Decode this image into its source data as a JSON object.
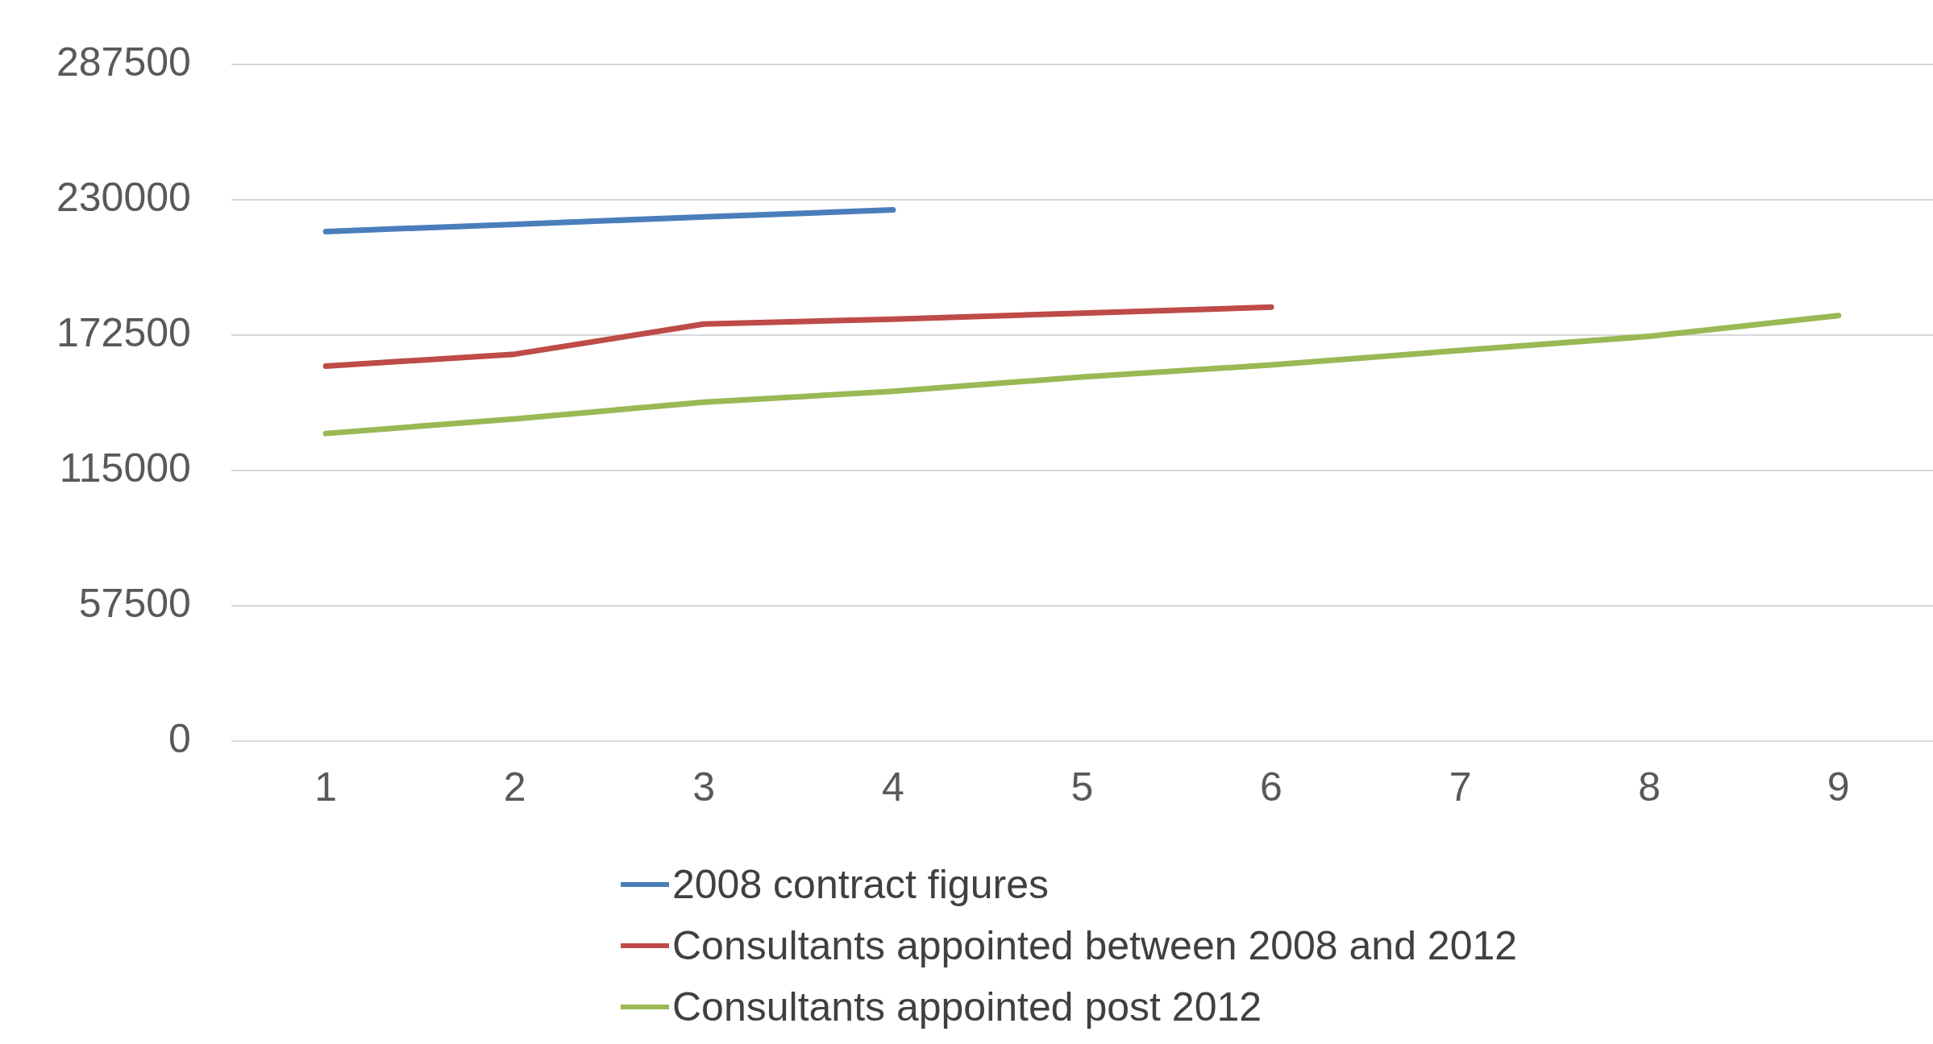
{
  "chart_data": {
    "type": "line",
    "categories": [
      "1",
      "2",
      "3",
      "4",
      "5",
      "6",
      "7",
      "8",
      "9"
    ],
    "series": [
      {
        "name": "2008 contract figures",
        "color": "#4a7ebb",
        "values": [
          216500,
          219600,
          222700,
          225700,
          null,
          null,
          null,
          null,
          null
        ]
      },
      {
        "name": "Consultants appointed between 2008 and 2012",
        "color": "#be4b48",
        "values": [
          159300,
          164400,
          177200,
          179300,
          181800,
          184400,
          null,
          null,
          null
        ]
      },
      {
        "name": "Consultants appointed post 2012",
        "color": "#98b954",
        "values": [
          130700,
          136900,
          144000,
          148600,
          154700,
          159800,
          166000,
          172000,
          180800
        ]
      }
    ],
    "ylim": [
      0,
      287500
    ],
    "yticks": [
      0,
      57500,
      115000,
      172500,
      230000,
      287500
    ],
    "grid": "y",
    "legend": "bottom",
    "marker": "none",
    "line_style": "solid"
  }
}
